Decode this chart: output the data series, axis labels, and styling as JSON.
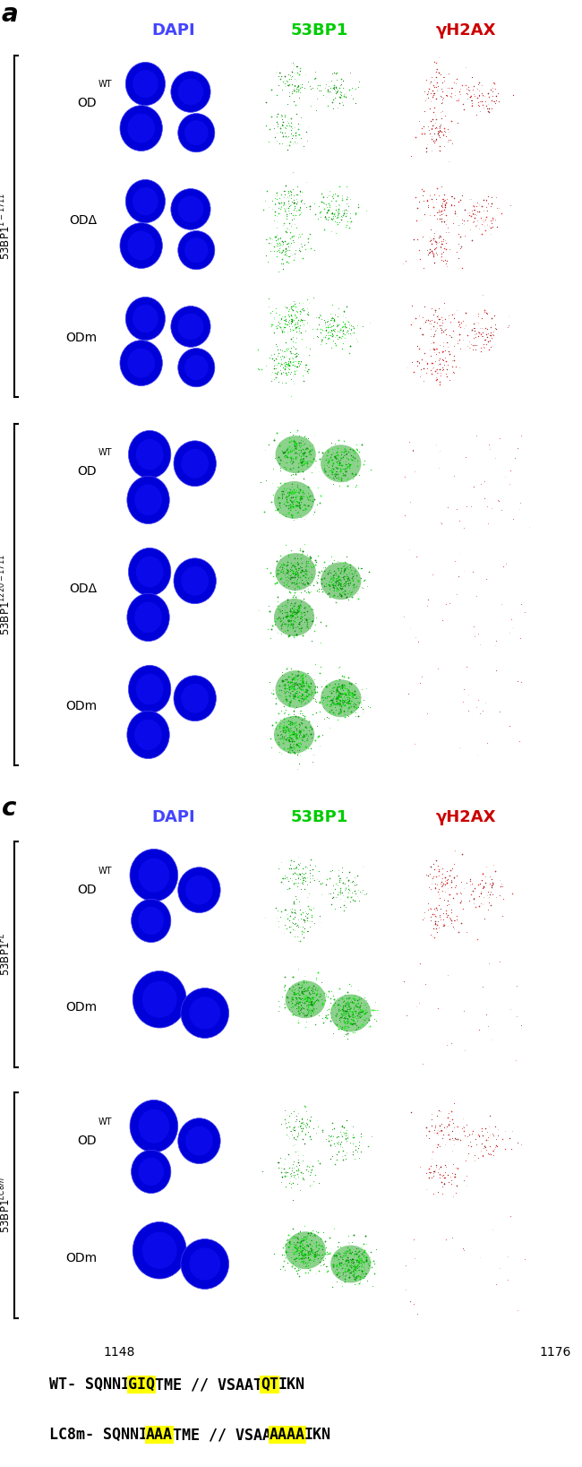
{
  "panel_a_label": "a",
  "panel_c_label": "c",
  "col_headers": [
    "DAPI",
    "53BP1",
    "γH2AX"
  ],
  "col_header_colors": [
    "#4444ff",
    "#00cc00",
    "#cc0000"
  ],
  "seg_wt": [
    [
      "WT- SQNNI",
      false
    ],
    [
      "GIQ",
      true
    ],
    [
      "TME // VSAAT",
      false
    ],
    [
      "QT",
      true
    ],
    [
      "IKN",
      false
    ]
  ],
  "seg_lc": [
    [
      "LC8m- SQNNI",
      false
    ],
    [
      "AAA",
      true
    ],
    [
      "TME // VSAA",
      false
    ],
    [
      "AAAA",
      true
    ],
    [
      "IKN",
      false
    ]
  ],
  "pos_left": "1148",
  "pos_right": "1176",
  "highlight_color": "#ffff00"
}
